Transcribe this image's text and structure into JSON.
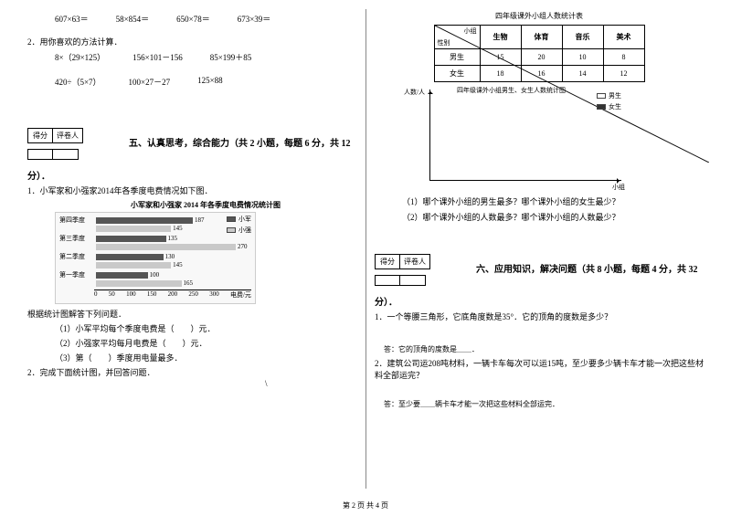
{
  "left": {
    "row1": [
      "607×63＝",
      "58×854＝",
      "650×78＝",
      "673×39＝"
    ],
    "q2_title": "2．用你喜欢的方法计算．",
    "row2a": [
      "8×（29×125）",
      "156×101－156",
      "85×199＋85"
    ],
    "row2b": [
      "420÷（5×7）",
      "100×27－27",
      "125×88"
    ],
    "score_labels": [
      "得分",
      "评卷人"
    ],
    "section5": "五、认真思考，综合能力（共 2 小题，每题 6 分，共 12",
    "section5b": "分）．",
    "q5_1": "1．小军家和小强家2014年各季度电费情况如下图．",
    "chart_title": "小军家和小强家 2014 年各季度电费情况统计图",
    "chart": {
      "legend": [
        "小军",
        "小强"
      ],
      "legend_colors": [
        "#555555",
        "#c9c9c9"
      ],
      "quarters": [
        "第四季度",
        "第三季度",
        "第二季度",
        "第一季度"
      ],
      "series": [
        {
          "a": 187,
          "b": 145
        },
        {
          "a": 135,
          "b": 270
        },
        {
          "a": 130,
          "b": 145
        },
        {
          "a": 100,
          "b": 165
        }
      ],
      "xticks": [
        "0",
        "50",
        "100",
        "150",
        "200",
        "250",
        "300"
      ],
      "xlabel": "电费/元",
      "max": 300
    },
    "q5_post": "根据统计图解答下列问题．",
    "q5_sub": [
      "（1）小军平均每个季度电费是（　　）元．",
      "（2）小强家平均每月电费是（　　）元．",
      "（3）第（　　）季度用电量最多．"
    ],
    "q5_2": "2．完成下面统计图，并回答问题．"
  },
  "right": {
    "table_title": "四年级课外小组人数统计表",
    "table": {
      "diag_top": "小组",
      "diag_bot": "性别",
      "cols": [
        "生物",
        "体育",
        "音乐",
        "美术"
      ],
      "rows": [
        {
          "label": "男生",
          "vals": [
            "15",
            "20",
            "10",
            "8"
          ]
        },
        {
          "label": "女生",
          "vals": [
            "18",
            "16",
            "14",
            "12"
          ]
        }
      ]
    },
    "axes_title": "四年级课外小组男生、女生人数统计图",
    "axes_ylabel": "人数/人",
    "axes_xlabel": "小组",
    "axes_legend": [
      "男生",
      "女生"
    ],
    "axes_legend_colors": [
      "#ffffff",
      "#333333"
    ],
    "sub_q": [
      "（1）哪个课外小组的男生最多？哪个课外小组的女生最少？",
      "（2）哪个课外小组的人数最多？哪个课外小组的人数最少？"
    ],
    "score_labels": [
      "得分",
      "评卷人"
    ],
    "section6": "六、应用知识，解决问题（共 8 小题，每题 4 分，共 32",
    "section6b": "分）．",
    "q6_1": "1．一个等腰三角形，它底角度数是35°．它的顶角的度数是多少？",
    "ans1": "答：它的顶角的度数是＿＿．",
    "q6_2": "2．建筑公司运208吨材料，一辆卡车每次可以运15吨，至少要多少辆卡车才能一次把这些材料全部运完？",
    "ans2": "答：至少要＿＿辆卡车才能一次把这些材料全部运完．"
  },
  "footer": "第 2 页 共 4 页"
}
